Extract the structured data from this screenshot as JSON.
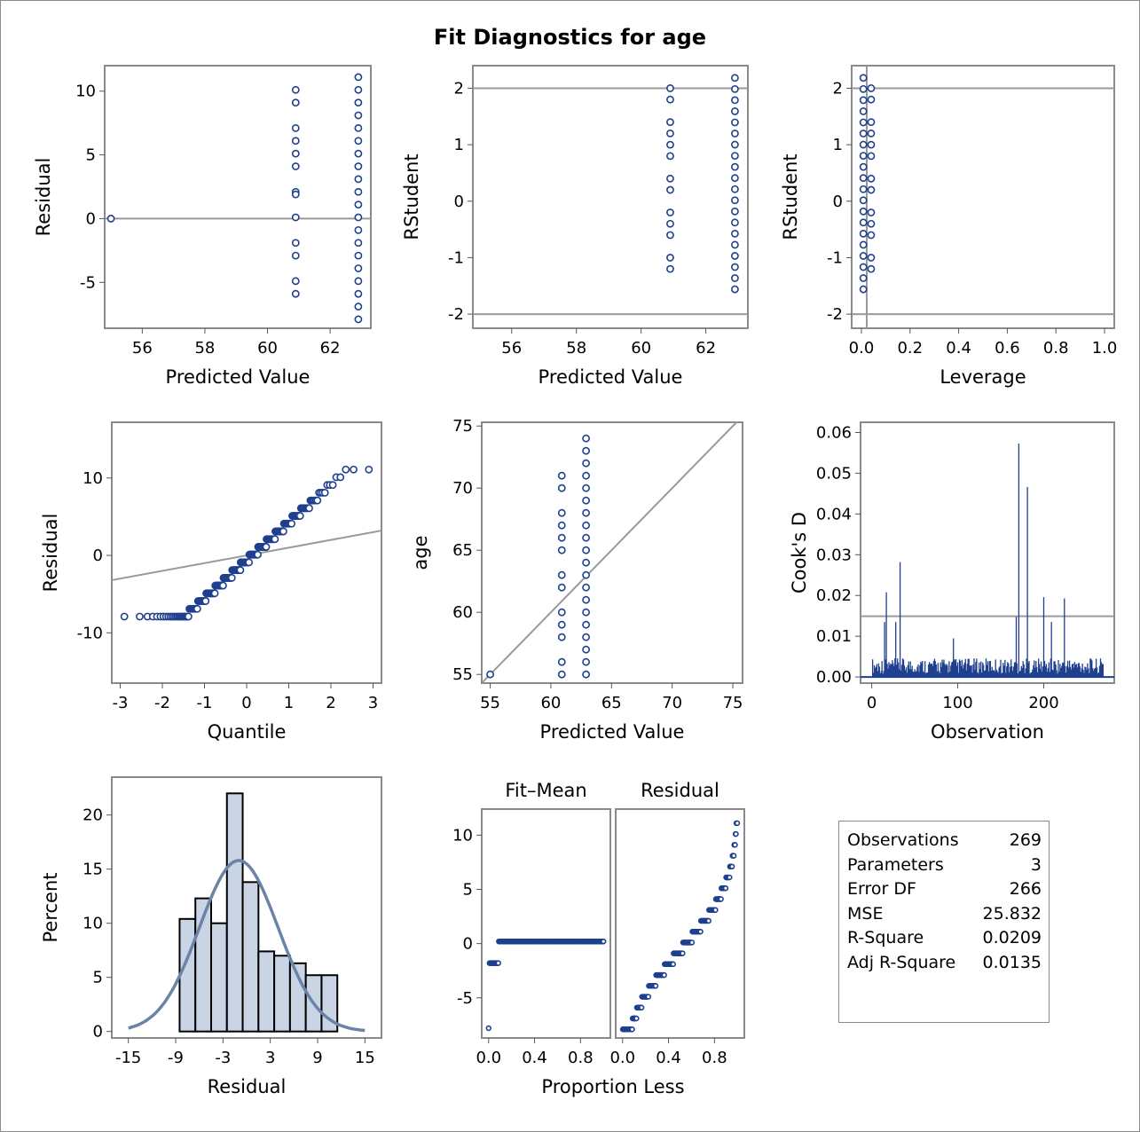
{
  "title": "Fit Diagnostics for age",
  "colors": {
    "marker": "#1f3f8f",
    "ref_line": "#9a9a9a",
    "frame": "#8a8a8a",
    "bar_fill": "#c9d4e4",
    "curve": "#6c83a8"
  },
  "stats_table": [
    {
      "label": "Observations",
      "value": "269"
    },
    {
      "label": "Parameters",
      "value": "3"
    },
    {
      "label": "Error DF",
      "value": "266"
    },
    {
      "label": "MSE",
      "value": "25.832"
    },
    {
      "label": "R-Square",
      "value": "0.0209"
    },
    {
      "label": "Adj R-Square",
      "value": "0.0135"
    }
  ],
  "chart_data": [
    {
      "id": "resid_vs_pred",
      "type": "scatter",
      "xlabel": "Predicted Value",
      "ylabel": "Residual",
      "xlim": [
        54.8,
        63.3
      ],
      "ylim": [
        -8.6,
        12.0
      ],
      "xticks": [
        56,
        58,
        60,
        62
      ],
      "yticks": [
        -5,
        0,
        5,
        10
      ],
      "ytick_labels": [
        "-5",
        "0",
        "5",
        "10"
      ],
      "ref_y": [
        0
      ],
      "groups": [
        {
          "x": 55.0,
          "y": [
            0
          ]
        },
        {
          "x": 60.9,
          "y": [
            10.1,
            9.1,
            7.1,
            6.1,
            5.1,
            4.1,
            2.1,
            1.9,
            0.1,
            -1.9,
            -2.9,
            -4.9,
            -5.9
          ]
        },
        {
          "x": 62.9,
          "y_range": [
            -7.9,
            11.1
          ],
          "y_step": 1.0
        }
      ]
    },
    {
      "id": "rstudent_vs_pred",
      "type": "scatter",
      "xlabel": "Predicted Value",
      "ylabel": "RStudent",
      "xlim": [
        54.8,
        63.3
      ],
      "ylim": [
        -2.25,
        2.4
      ],
      "xticks": [
        56,
        58,
        60,
        62
      ],
      "yticks": [
        -2,
        -1,
        0,
        1,
        2
      ],
      "ytick_labels": [
        "-2",
        "-1",
        "0",
        "1",
        "2"
      ],
      "ref_y": [
        -2,
        2
      ],
      "groups": [
        {
          "x": 60.9,
          "y": [
            2.0,
            1.8,
            1.4,
            1.2,
            1.0,
            0.8,
            0.4,
            0.2,
            -0.2,
            -0.4,
            -0.6,
            -1.0,
            -1.2
          ]
        },
        {
          "x": 62.9,
          "y_range": [
            -1.56,
            2.2
          ],
          "y_step": 0.197
        }
      ]
    },
    {
      "id": "rstudent_vs_leverage",
      "type": "scatter",
      "xlabel": "Leverage",
      "ylabel": "RStudent",
      "xlim": [
        -0.04,
        1.04
      ],
      "ylim": [
        -2.25,
        2.4
      ],
      "xticks": [
        0.0,
        0.2,
        0.4,
        0.6,
        0.8,
        1.0
      ],
      "xtick_labels": [
        "0.0",
        "0.2",
        "0.4",
        "0.6",
        "0.8",
        "1.0"
      ],
      "yticks": [
        -2,
        -1,
        0,
        1,
        2
      ],
      "ytick_labels": [
        "-2",
        "-1",
        "0",
        "1",
        "2"
      ],
      "ref_y": [
        -2,
        2
      ],
      "ref_x": [
        0.022
      ],
      "groups": [
        {
          "x": 0.008,
          "y_range": [
            -1.56,
            2.2
          ],
          "y_step": 0.197
        },
        {
          "x": 0.04,
          "y": [
            2.0,
            1.8,
            1.4,
            1.2,
            1.0,
            0.8,
            0.4,
            0.2,
            -0.2,
            -0.4,
            -0.6,
            -1.0,
            -1.2
          ]
        }
      ]
    },
    {
      "id": "qq_plot",
      "type": "scatter",
      "xlabel": "Quantile",
      "ylabel": "Residual",
      "xlim": [
        -3.2,
        3.2
      ],
      "ylim": [
        -16.5,
        17.2
      ],
      "xticks": [
        -3,
        -2,
        -1,
        0,
        1,
        2,
        3
      ],
      "xtick_labels": [
        "-3",
        "-2",
        "-1",
        "0",
        "1",
        "2",
        "3"
      ],
      "yticks": [
        -10,
        0,
        10
      ],
      "ytick_labels": [
        "-10",
        "0",
        "10"
      ],
      "diagonal": true,
      "n": 269,
      "residual_range": [
        -7.9,
        11.1
      ]
    },
    {
      "id": "age_vs_pred",
      "type": "scatter",
      "xlabel": "Predicted Value",
      "ylabel": "age",
      "xlim": [
        54.3,
        75.8
      ],
      "ylim": [
        54.3,
        75.3
      ],
      "xticks": [
        55,
        60,
        65,
        70,
        75
      ],
      "yticks": [
        55,
        60,
        65,
        70,
        75
      ],
      "diagonal": true,
      "groups": [
        {
          "x": 55.0,
          "y": [
            55
          ]
        },
        {
          "x": 60.9,
          "y": [
            71,
            70,
            68,
            67,
            66,
            65,
            63,
            62,
            60,
            59,
            58,
            56,
            55
          ]
        },
        {
          "x": 62.9,
          "y_range": [
            55,
            74
          ],
          "y_step": 1
        }
      ]
    },
    {
      "id": "cooks_d",
      "type": "needle",
      "xlabel": "Observation",
      "ylabel": "Cook's D",
      "xlim": [
        -13,
        282
      ],
      "ylim": [
        -0.0015,
        0.0625
      ],
      "xticks": [
        0,
        100,
        200
      ],
      "yticks": [
        0.0,
        0.01,
        0.02,
        0.03,
        0.04,
        0.05,
        0.06
      ],
      "ytick_labels": [
        "0.00",
        "0.01",
        "0.02",
        "0.03",
        "0.04",
        "0.05",
        "0.06"
      ],
      "ref_y": [
        0.0149
      ],
      "n": 269,
      "spikes": [
        [
          15,
          0.0135
        ],
        [
          17,
          0.0208
        ],
        [
          28,
          0.0135
        ],
        [
          33,
          0.0282
        ],
        [
          95,
          0.0095
        ],
        [
          168,
          0.0148
        ],
        [
          171,
          0.0573
        ],
        [
          181,
          0.0466
        ],
        [
          200,
          0.0196
        ],
        [
          209,
          0.0135
        ],
        [
          224,
          0.0193
        ]
      ]
    },
    {
      "id": "resid_histogram",
      "type": "bar",
      "xlabel": "Residual",
      "ylabel": "Percent",
      "xlim": [
        -17.1,
        17.1
      ],
      "ylim": [
        -0.6,
        23.5
      ],
      "xticks": [
        -15,
        -9,
        -3,
        3,
        9,
        15
      ],
      "xtick_labels": [
        "-15",
        "-9",
        "-3",
        "3",
        "9",
        "15"
      ],
      "yticks": [
        0,
        5,
        10,
        15,
        20
      ],
      "bin_start": -8.5,
      "bin_width": 2,
      "percents": [
        10.4,
        12.3,
        10.0,
        22.0,
        13.8,
        7.4,
        7.0,
        6.3,
        5.2,
        5.2
      ],
      "normal_curve": {
        "mean": -1.0,
        "sd": 5.0,
        "peak": 15.8
      }
    },
    {
      "id": "rf_fit_mean",
      "type": "scatter",
      "panel_title": "Fit–Mean",
      "xlabel": "Proportion Less",
      "ylabel": "",
      "xlim": [
        -0.06,
        1.06
      ],
      "ylim": [
        -8.7,
        12.4
      ],
      "xticks": [
        0.0,
        0.4,
        0.8
      ],
      "xtick_labels": [
        "0.0",
        "0.4",
        "0.8"
      ],
      "yticks": [
        -5,
        0,
        5,
        10
      ],
      "ytick_labels": [
        "-5",
        "0",
        "5",
        "10"
      ],
      "levels": [
        {
          "y": -7.8,
          "p": [
            0.0,
            0.0
          ]
        },
        {
          "y": -1.8,
          "p": [
            0.008,
            0.085
          ]
        },
        {
          "y": 0.2,
          "p": [
            0.089,
            1.0
          ]
        }
      ]
    },
    {
      "id": "rf_residual",
      "type": "scatter",
      "panel_title": "Residual",
      "xlabel": "",
      "ylabel": "",
      "xlim": [
        -0.06,
        1.06
      ],
      "ylim": [
        -8.7,
        12.4
      ],
      "xticks": [
        0.0,
        0.4,
        0.8
      ],
      "xtick_labels": [
        "0.0",
        "0.4",
        "0.8"
      ],
      "n": 269,
      "residual_range": [
        -7.9,
        11.1
      ]
    }
  ]
}
